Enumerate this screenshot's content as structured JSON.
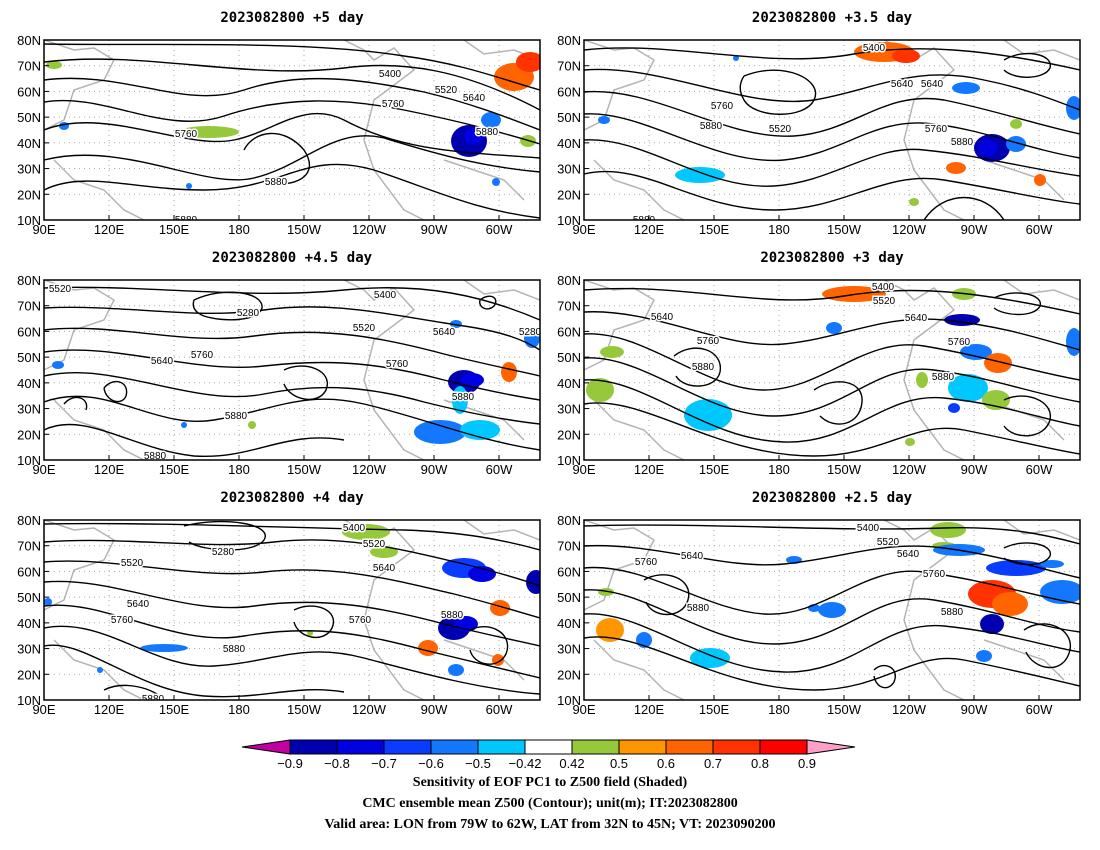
{
  "panels": [
    {
      "id": "p1",
      "title": "2023082800  +5 day",
      "contours": [
        "5400",
        "5520",
        "5640",
        "5760",
        "5760",
        "5880",
        "5880",
        "5880"
      ]
    },
    {
      "id": "p2",
      "title": "2023082800  +3.5 day",
      "contours": [
        "5400",
        "5640",
        "5640",
        "5760",
        "5880",
        "5520",
        "5760",
        "5880",
        "5880"
      ]
    },
    {
      "id": "p3",
      "title": "2023082800  +4.5 day",
      "contours": [
        "5520",
        "5280",
        "5400",
        "5520",
        "5640",
        "5280",
        "5640",
        "5760",
        "5760",
        "5880",
        "5880",
        "5880"
      ]
    },
    {
      "id": "p4",
      "title": "2023082800  +3 day",
      "contours": [
        "5400",
        "5520",
        "5640",
        "5640",
        "5760",
        "5760",
        "5880",
        "5880"
      ]
    },
    {
      "id": "p5",
      "title": "2023082800  +4 day",
      "contours": [
        "5400",
        "5520",
        "5280",
        "5520",
        "5640",
        "5640",
        "5760",
        "5760",
        "5880",
        "5880",
        "5880"
      ]
    },
    {
      "id": "p6",
      "title": "2023082800  +2.5 day",
      "contours": [
        "5400",
        "5520",
        "5640",
        "5640",
        "5760",
        "5760",
        "5880",
        "5880"
      ]
    }
  ],
  "lat_labels": [
    "80N",
    "70N",
    "60N",
    "50N",
    "40N",
    "30N",
    "20N",
    "10N"
  ],
  "lon_labels": [
    "90E",
    "120E",
    "150E",
    "180",
    "150W",
    "120W",
    "90W",
    "60W"
  ],
  "colorbar": {
    "labels": [
      "−0.9",
      "−0.8",
      "−0.7",
      "−0.6",
      "−0.5",
      "−0.42",
      "0.42",
      "0.5",
      "0.6",
      "0.7",
      "0.8",
      "0.9"
    ],
    "colors": [
      "#c000a0",
      "#0000b0",
      "#0000e0",
      "#0a3cff",
      "#1478ff",
      "#00c8ff",
      "#ffffff",
      "#96c83c",
      "#ff9600",
      "#ff6400",
      "#ff3200",
      "#ff0000",
      "#ffa0c8"
    ]
  },
  "captions": [
    "Sensitivity of EOF PC1 to Z500 field (Shaded)",
    "CMC ensemble mean Z500 (Contour); unit(m); IT:2023082800",
    "Valid area: LON from 79W to 62W, LAT from 32N to 45N; VT: 2023090200"
  ]
}
